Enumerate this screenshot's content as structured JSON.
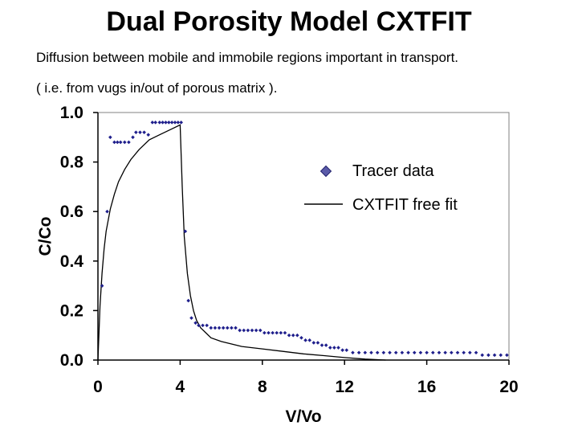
{
  "slide": {
    "title": "Dual Porosity Model CXTFIT",
    "line1": "Diffusion between mobile and immobile regions important in transport.",
    "line2": "( i.e. from vugs in/out of porous matrix )."
  },
  "chart_data": {
    "type": "scatter",
    "xlabel": "V/Vo",
    "ylabel": "C/Co",
    "xlim": [
      0,
      20
    ],
    "ylim": [
      0,
      1
    ],
    "x_ticks": [
      0,
      4,
      8,
      12,
      16,
      20
    ],
    "y_ticks": [
      "0.0",
      "0.2",
      "0.4",
      "0.6",
      "0.8",
      "1.0"
    ],
    "grid": false,
    "legend_position": "right",
    "colors": {
      "data": "#1f1f8c",
      "fit": "#000000",
      "frame": "#808080"
    },
    "series": [
      {
        "name": "Tracer data",
        "kind": "points",
        "x": [
          0.2,
          0.45,
          0.6,
          0.8,
          0.95,
          1.1,
          1.3,
          1.5,
          1.7,
          1.85,
          2.05,
          2.25,
          2.45,
          2.65,
          2.8,
          3.0,
          3.15,
          3.3,
          3.45,
          3.6,
          3.75,
          3.9,
          4.05,
          4.25,
          4.4,
          4.55,
          4.75,
          4.9,
          5.1,
          5.3,
          5.5,
          5.7,
          5.9,
          6.1,
          6.3,
          6.5,
          6.7,
          6.9,
          7.1,
          7.3,
          7.5,
          7.7,
          7.9,
          8.1,
          8.3,
          8.5,
          8.7,
          8.9,
          9.1,
          9.3,
          9.5,
          9.7,
          9.9,
          10.1,
          10.3,
          10.5,
          10.7,
          10.9,
          11.1,
          11.3,
          11.5,
          11.7,
          11.9,
          12.1,
          12.4,
          12.7,
          13.0,
          13.3,
          13.6,
          13.9,
          14.2,
          14.5,
          14.8,
          15.1,
          15.4,
          15.7,
          16.0,
          16.3,
          16.6,
          16.9,
          17.2,
          17.5,
          17.8,
          18.1,
          18.4,
          18.7,
          19.0,
          19.3,
          19.6,
          19.9
        ],
        "y": [
          0.3,
          0.6,
          0.9,
          0.88,
          0.88,
          0.88,
          0.88,
          0.88,
          0.9,
          0.92,
          0.92,
          0.92,
          0.91,
          0.96,
          0.96,
          0.96,
          0.96,
          0.96,
          0.96,
          0.96,
          0.96,
          0.96,
          0.96,
          0.52,
          0.24,
          0.17,
          0.15,
          0.14,
          0.14,
          0.14,
          0.13,
          0.13,
          0.13,
          0.13,
          0.13,
          0.13,
          0.13,
          0.12,
          0.12,
          0.12,
          0.12,
          0.12,
          0.12,
          0.11,
          0.11,
          0.11,
          0.11,
          0.11,
          0.11,
          0.1,
          0.1,
          0.1,
          0.09,
          0.08,
          0.08,
          0.07,
          0.07,
          0.06,
          0.06,
          0.05,
          0.05,
          0.05,
          0.04,
          0.04,
          0.03,
          0.03,
          0.03,
          0.03,
          0.03,
          0.03,
          0.03,
          0.03,
          0.03,
          0.03,
          0.03,
          0.03,
          0.03,
          0.03,
          0.03,
          0.03,
          0.03,
          0.03,
          0.03,
          0.03,
          0.03,
          0.02,
          0.02,
          0.02,
          0.02,
          0.02
        ]
      },
      {
        "name": "CXTFIT free fit",
        "kind": "line",
        "x": [
          0,
          0.1,
          0.2,
          0.3,
          0.4,
          0.6,
          0.8,
          1.0,
          1.3,
          1.6,
          2.0,
          2.5,
          3.0,
          3.5,
          4.0,
          4.1,
          4.2,
          4.35,
          4.5,
          4.65,
          4.8,
          5.0,
          5.25,
          5.5,
          6.0,
          6.5,
          7.0,
          8.0,
          9.0,
          10.0,
          11.0,
          12.0,
          13.0,
          14.0
        ],
        "y": [
          0,
          0.22,
          0.35,
          0.45,
          0.52,
          0.61,
          0.67,
          0.72,
          0.77,
          0.81,
          0.85,
          0.89,
          0.91,
          0.93,
          0.95,
          0.7,
          0.5,
          0.35,
          0.26,
          0.2,
          0.16,
          0.13,
          0.11,
          0.09,
          0.075,
          0.065,
          0.055,
          0.045,
          0.035,
          0.025,
          0.018,
          0.01,
          0.004,
          0
        ]
      }
    ]
  }
}
